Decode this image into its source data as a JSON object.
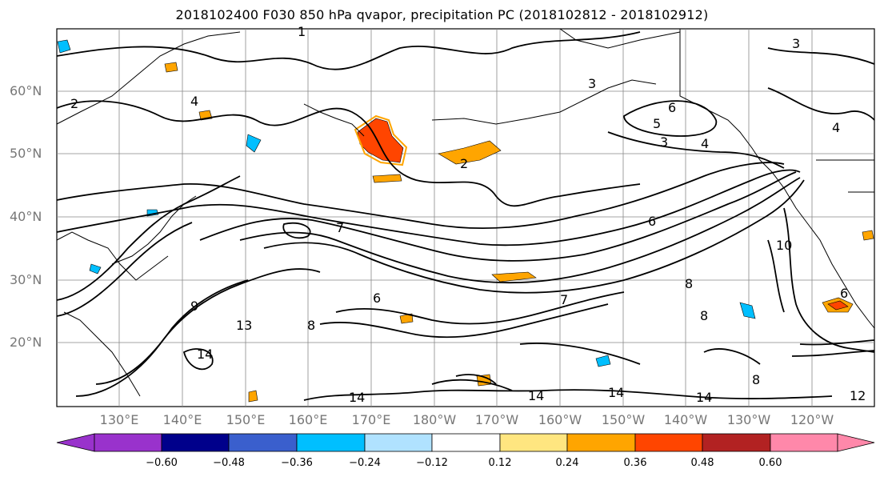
{
  "title": "2018102400 F030 850 hPa qvapor, precipitation PC (2018102812 - 2018102912)",
  "lat_labels": [
    "60°N",
    "50°N",
    "40°N",
    "30°N",
    "20°N"
  ],
  "lon_labels": [
    "130°E",
    "140°E",
    "150°E",
    "160°E",
    "170°E",
    "180°W",
    "170°W",
    "160°W",
    "150°W",
    "140°W",
    "130°W",
    "120°W"
  ],
  "colorbar": {
    "ticks": [
      "−0.60",
      "−0.48",
      "−0.36",
      "−0.24",
      "−0.12",
      "0.12",
      "0.24",
      "0.36",
      "0.48",
      "0.60"
    ],
    "colors": [
      "#9932cc",
      "#00008b",
      "#3a5fcd",
      "#00bfff",
      "#b0e2ff",
      "#ffffff",
      "#ffe680",
      "#ffa500",
      "#ff4500",
      "#b22222",
      "#ff88aa"
    ]
  },
  "contour_labels": [
    "1",
    "2",
    "3",
    "4",
    "5",
    "6",
    "7",
    "8",
    "9",
    "10",
    "12",
    "13",
    "14"
  ]
}
